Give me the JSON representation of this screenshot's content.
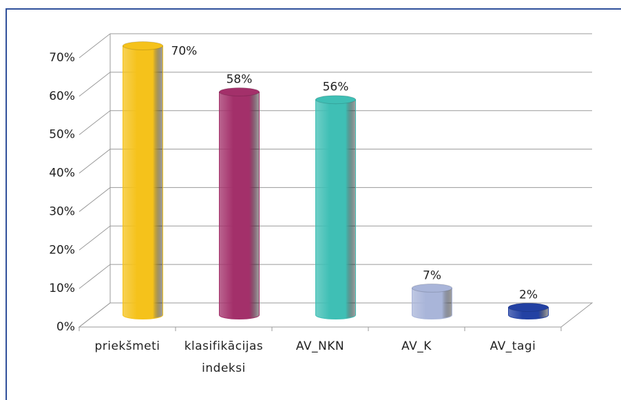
{
  "chart_data": {
    "type": "bar",
    "categories": [
      "priekšmeti",
      "klasifikācijas indeksi",
      "AV_NKN",
      "AV_K",
      "AV_tagi"
    ],
    "values": [
      70,
      58,
      56,
      7,
      2
    ],
    "value_labels": [
      "70%",
      "58%",
      "56%",
      "7%",
      "2%"
    ],
    "colors": [
      "#f5c21b",
      "#a3306a",
      "#3fbfb5",
      "#a9b5d9",
      "#2341a3"
    ],
    "ylim": [
      0,
      70
    ],
    "yticks": [
      {
        "value": 0,
        "label": "0%"
      },
      {
        "value": 10,
        "label": "10%"
      },
      {
        "value": 20,
        "label": "20%"
      },
      {
        "value": 30,
        "label": "30%"
      },
      {
        "value": 40,
        "label": "40%"
      },
      {
        "value": 50,
        "label": "50%"
      },
      {
        "value": 60,
        "label": "60%"
      },
      {
        "value": 70,
        "label": "70%"
      }
    ],
    "grid": true
  }
}
